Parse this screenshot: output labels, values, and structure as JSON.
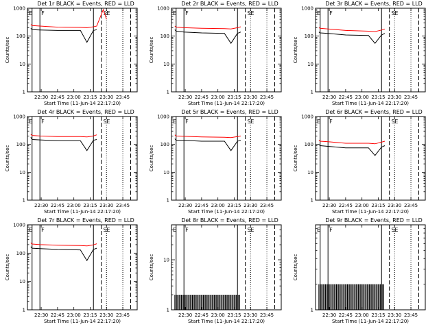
{
  "chart_data": [
    {
      "type": "line",
      "title": "Det 1r BLACK = Events, RED = LLD",
      "xlabel": "Start Time (11-Jun-14 22:17:20)",
      "ylabel": "Counts/sec",
      "y_scale": "log",
      "ylim": [
        1,
        1000
      ],
      "yticks": [
        "1",
        "10",
        "100",
        "1000"
      ],
      "xticks": [
        "22:30",
        "22:45",
        "23:00",
        "23:15",
        "23:30",
        "23:45"
      ],
      "markers": [
        "E",
        "F",
        "S",
        "E"
      ],
      "series": [
        {
          "name": "Events",
          "color": "#000000",
          "x": [
            22.34,
            22.36,
            22.48,
            22.75,
            23.1,
            23.2,
            23.3,
            23.35,
            23.45,
            23.5
          ],
          "y": [
            190,
            170,
            165,
            160,
            160,
            60,
            160,
            170,
            0,
            0
          ]
        },
        {
          "name": "LLD",
          "color": "#ff0000",
          "x": [
            22.34,
            22.36,
            22.48,
            22.75,
            23.1,
            23.2,
            23.3,
            23.35,
            23.45,
            23.5
          ],
          "y": [
            260,
            240,
            230,
            210,
            205,
            200,
            215,
            230,
            900,
            400
          ]
        }
      ]
    },
    {
      "type": "line",
      "title": "Det 2r BLACK = Events, RED = LLD",
      "xlabel": "Start Time (11-Jun-14 22:17:20)",
      "ylabel": "Counts/sec",
      "y_scale": "log",
      "ylim": [
        1,
        1000
      ],
      "yticks": [
        "1",
        "10",
        "100",
        "1000"
      ],
      "xticks": [
        "22:30",
        "22:45",
        "23:00",
        "23:15",
        "23:30",
        "23:45"
      ],
      "markers": [
        "E",
        "F",
        "S",
        "E"
      ],
      "series": [
        {
          "name": "Events",
          "color": "#000000",
          "x": [
            22.34,
            22.36,
            22.48,
            22.75,
            23.1,
            23.2,
            23.3,
            23.35
          ],
          "y": [
            170,
            150,
            140,
            130,
            125,
            55,
            125,
            140
          ]
        },
        {
          "name": "LLD",
          "color": "#ff0000",
          "x": [
            22.34,
            22.36,
            22.48,
            22.75,
            23.1,
            23.2,
            23.3,
            23.35
          ],
          "y": [
            230,
            210,
            200,
            190,
            185,
            180,
            200,
            215
          ]
        }
      ]
    },
    {
      "type": "line",
      "title": "Det 3r BLACK = Events, RED = LLD",
      "xlabel": "Start Time (11-Jun-14 22:17:20)",
      "ylabel": "Counts/sec",
      "y_scale": "log",
      "ylim": [
        1,
        1000
      ],
      "yticks": [
        "1",
        "10",
        "100",
        "1000"
      ],
      "xticks": [
        "22:30",
        "22:45",
        "23:00",
        "23:15",
        "23:30",
        "23:45"
      ],
      "markers": [
        "E",
        "F",
        "S",
        "E"
      ],
      "series": [
        {
          "name": "Events",
          "color": "#000000",
          "x": [
            22.34,
            22.36,
            22.48,
            22.75,
            23.1,
            23.2,
            23.3,
            23.35
          ],
          "y": [
            140,
            130,
            125,
            110,
            105,
            55,
            110,
            125
          ]
        },
        {
          "name": "LLD",
          "color": "#ff0000",
          "x": [
            22.34,
            22.36,
            22.48,
            22.75,
            23.1,
            23.2,
            23.3,
            23.35
          ],
          "y": [
            200,
            190,
            180,
            160,
            150,
            145,
            165,
            180
          ]
        }
      ]
    },
    {
      "type": "line",
      "title": "Det 4r BLACK = Events, RED = LLD",
      "xlabel": "Start Time (11-Jun-14 22:17:20)",
      "ylabel": "Counts/sec",
      "y_scale": "log",
      "ylim": [
        1,
        1000
      ],
      "yticks": [
        "1",
        "10",
        "100",
        "1000"
      ],
      "xticks": [
        "22:30",
        "22:45",
        "23:00",
        "23:15",
        "23:30",
        "23:45"
      ],
      "markers": [
        "E",
        "F",
        "S",
        "E"
      ],
      "series": [
        {
          "name": "Events",
          "color": "#000000",
          "x": [
            22.34,
            22.36,
            22.48,
            22.75,
            23.1,
            23.2,
            23.3,
            23.35
          ],
          "y": [
            180,
            150,
            145,
            135,
            135,
            60,
            140,
            150
          ]
        },
        {
          "name": "LLD",
          "color": "#ff0000",
          "x": [
            22.34,
            22.36,
            22.48,
            22.75,
            23.1,
            23.2,
            23.3,
            23.35
          ],
          "y": [
            230,
            210,
            200,
            190,
            190,
            185,
            200,
            220
          ]
        }
      ]
    },
    {
      "type": "line",
      "title": "Det 5r BLACK = Events, RED = LLD",
      "xlabel": "Start Time (11-Jun-14 22:17:20)",
      "ylabel": "Counts/sec",
      "y_scale": "log",
      "ylim": [
        1,
        1000
      ],
      "yticks": [
        "1",
        "10",
        "100",
        "1000"
      ],
      "xticks": [
        "22:30",
        "22:45",
        "23:00",
        "23:15",
        "23:30",
        "23:45"
      ],
      "markers": [
        "E",
        "F",
        "S",
        "E"
      ],
      "series": [
        {
          "name": "Events",
          "color": "#000000",
          "x": [
            22.34,
            22.36,
            22.48,
            22.75,
            23.1,
            23.2,
            23.3,
            23.35
          ],
          "y": [
            160,
            140,
            140,
            130,
            130,
            60,
            130,
            140
          ]
        },
        {
          "name": "LLD",
          "color": "#ff0000",
          "x": [
            22.34,
            22.36,
            22.48,
            22.75,
            23.1,
            23.2,
            23.3,
            23.35
          ],
          "y": [
            220,
            200,
            195,
            185,
            180,
            175,
            190,
            200
          ]
        }
      ]
    },
    {
      "type": "line",
      "title": "Det 6r BLACK = Events, RED = LLD",
      "xlabel": "Start Time (11-Jun-14 22:17:20)",
      "ylabel": "Counts/sec",
      "y_scale": "log",
      "ylim": [
        1,
        1000
      ],
      "yticks": [
        "1",
        "10",
        "100",
        "1000"
      ],
      "xticks": [
        "22:30",
        "22:45",
        "23:00",
        "23:15",
        "23:30",
        "23:45"
      ],
      "markers": [
        "E",
        "F",
        "S",
        "E"
      ],
      "series": [
        {
          "name": "Events",
          "color": "#000000",
          "x": [
            22.34,
            22.36,
            22.48,
            22.75,
            23.1,
            23.2,
            23.3,
            23.35
          ],
          "y": [
            100,
            90,
            85,
            75,
            75,
            40,
            80,
            90
          ]
        },
        {
          "name": "LLD",
          "color": "#ff0000",
          "x": [
            22.34,
            22.36,
            22.48,
            22.75,
            23.1,
            23.2,
            23.3,
            23.35
          ],
          "y": [
            140,
            130,
            125,
            110,
            110,
            105,
            120,
            130
          ]
        }
      ]
    },
    {
      "type": "line",
      "title": "Det 7r BLACK = Events, RED = LLD",
      "xlabel": "Start Time (11-Jun-14 22:17:20)",
      "ylabel": "Counts/sec",
      "y_scale": "log",
      "ylim": [
        1,
        1000
      ],
      "yticks": [
        "1",
        "10",
        "100",
        "1000"
      ],
      "xticks": [
        "22:30",
        "22:45",
        "23:00",
        "23:15",
        "23:30",
        "23:45"
      ],
      "markers": [
        "E",
        "F",
        "S",
        "E"
      ],
      "series": [
        {
          "name": "Events",
          "color": "#000000",
          "x": [
            22.34,
            22.36,
            22.48,
            22.75,
            23.1,
            23.2,
            23.3,
            23.35
          ],
          "y": [
            170,
            150,
            145,
            135,
            130,
            55,
            135,
            150
          ]
        },
        {
          "name": "LLD",
          "color": "#ff0000",
          "x": [
            22.34,
            22.36,
            22.48,
            22.75,
            23.1,
            23.2,
            23.3,
            23.35
          ],
          "y": [
            230,
            210,
            200,
            190,
            185,
            180,
            195,
            215
          ]
        }
      ]
    },
    {
      "type": "line",
      "title": "Det 8r BLACK = Events, RED = LLD",
      "xlabel": "Start Time (11-Jun-14 22:17:20)",
      "ylabel": "Counts/sec",
      "y_scale": "log",
      "ylim": [
        1,
        50
      ],
      "yticks": [
        "1",
        "10"
      ],
      "xticks": [
        "22:30",
        "22:45",
        "23:00",
        "23:15",
        "23:30",
        "23:45"
      ],
      "markers": [
        "E",
        "F",
        "S",
        "E"
      ],
      "series": [
        {
          "name": "Events",
          "color": "#000000",
          "x": [
            22.34,
            22.5,
            23.0,
            23.35
          ],
          "y": [
            2,
            2,
            2,
            2
          ]
        }
      ]
    },
    {
      "type": "line",
      "title": "Det 9r BLACK = Events, RED = LLD",
      "xlabel": "Start Time (11-Jun-14 22:17:20)",
      "ylabel": "Counts/sec",
      "y_scale": "log",
      "ylim": [
        1,
        10
      ],
      "yticks": [
        "1"
      ],
      "xticks": [
        "22:30",
        "22:45",
        "23:00",
        "23:15",
        "23:30",
        "23:45"
      ],
      "markers": [
        "E",
        "F",
        "S",
        "E"
      ],
      "series": [
        {
          "name": "Events",
          "color": "#000000",
          "x": [
            22.34,
            22.5,
            23.0,
            23.35
          ],
          "y": [
            2,
            2,
            2,
            2
          ]
        }
      ]
    }
  ]
}
